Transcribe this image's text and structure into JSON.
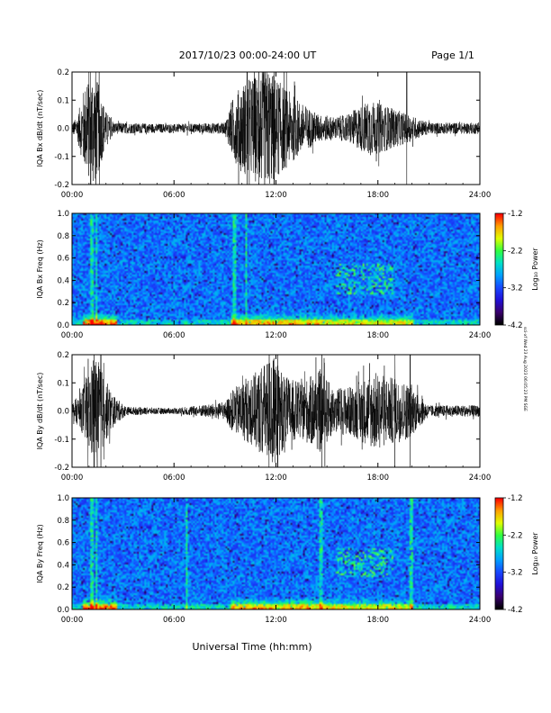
{
  "header": {
    "title": "2017/10/23  00:00-24:00 UT",
    "page": "Page 1/1"
  },
  "xaxis_title": "Universal Time (hh:mm)",
  "side_stamp": "sci-xf Wed 23 Aug 2023 06:05:23 PM SGE",
  "colors": {
    "trace": "#000000",
    "colormap": [
      "#000000",
      "#3a006e",
      "#2010d8",
      "#1848ff",
      "#00a0ff",
      "#00e0c8",
      "#30ff40",
      "#e0ff00",
      "#ffa000",
      "#ff0000"
    ]
  },
  "chart_data": [
    {
      "type": "line",
      "ylabel": "IQA Bx dB/dt (nT/sec)",
      "xlim": [
        0,
        24
      ],
      "ylim": [
        -0.2,
        0.2
      ],
      "x_ticks": [
        "00:00",
        "06:00",
        "12:00",
        "18:00",
        "24:00"
      ],
      "y_ticks": [
        "0.2",
        "0.1",
        "0.0",
        "-0.1",
        "-0.2"
      ],
      "envelope": [
        {
          "t": 0,
          "a": 0.02
        },
        {
          "t": 0.3,
          "a": 0.04
        },
        {
          "t": 0.7,
          "a": 0.14
        },
        {
          "t": 1.2,
          "a": 0.22
        },
        {
          "t": 1.6,
          "a": 0.15
        },
        {
          "t": 2.0,
          "a": 0.06
        },
        {
          "t": 2.5,
          "a": 0.02
        },
        {
          "t": 6.0,
          "a": 0.015
        },
        {
          "t": 9.0,
          "a": 0.02
        },
        {
          "t": 9.4,
          "a": 0.1
        },
        {
          "t": 10.0,
          "a": 0.16
        },
        {
          "t": 11.5,
          "a": 0.22
        },
        {
          "t": 12.3,
          "a": 0.16
        },
        {
          "t": 13.5,
          "a": 0.09
        },
        {
          "t": 14.5,
          "a": 0.05
        },
        {
          "t": 15.5,
          "a": 0.04
        },
        {
          "t": 16.2,
          "a": 0.05
        },
        {
          "t": 17.5,
          "a": 0.1
        },
        {
          "t": 18.5,
          "a": 0.08
        },
        {
          "t": 19.8,
          "a": 0.05
        },
        {
          "t": 21.0,
          "a": 0.02
        },
        {
          "t": 24.0,
          "a": 0.02
        }
      ],
      "spikes": [
        1.1,
        1.4,
        1.6,
        10.3,
        11.0,
        11.9,
        19.7
      ]
    },
    {
      "type": "heatmap",
      "ylabel": "IQA Bx Freq (Hz)",
      "xlim": [
        0,
        24
      ],
      "ylim": [
        0,
        1
      ],
      "x_ticks": [
        "00:00",
        "06:00",
        "12:00",
        "18:00",
        "24:00"
      ],
      "y_ticks": [
        "1.0",
        "0.8",
        "0.6",
        "0.4",
        "0.2",
        "0.0"
      ],
      "colorbar": {
        "label": "Log₁₀ Power",
        "ticks": [
          "-1.2",
          "-2.2",
          "-3.2",
          "-4.2"
        ],
        "range": [
          -4.2,
          -1.2
        ]
      },
      "vertical_streaks": [
        1.1,
        1.4,
        9.5,
        10.2
      ],
      "bursts": [
        {
          "t0": 15.4,
          "t1": 18.8,
          "f0": 0.28,
          "f1": 0.55
        }
      ]
    },
    {
      "type": "line",
      "ylabel": "IQA By dB/dt (nT/sec)",
      "xlim": [
        0,
        24
      ],
      "ylim": [
        -0.2,
        0.2
      ],
      "x_ticks": [
        "00:00",
        "06:00",
        "12:00",
        "18:00",
        "24:00"
      ],
      "y_ticks": [
        "0.2",
        "0.1",
        "0.0",
        "-0.1",
        "-0.2"
      ],
      "envelope": [
        {
          "t": 0,
          "a": 0.03
        },
        {
          "t": 0.5,
          "a": 0.06
        },
        {
          "t": 0.9,
          "a": 0.14
        },
        {
          "t": 1.4,
          "a": 0.2
        },
        {
          "t": 1.9,
          "a": 0.12
        },
        {
          "t": 2.5,
          "a": 0.05
        },
        {
          "t": 3.2,
          "a": 0.015
        },
        {
          "t": 6.0,
          "a": 0.01
        },
        {
          "t": 9.0,
          "a": 0.03
        },
        {
          "t": 9.5,
          "a": 0.08
        },
        {
          "t": 10.5,
          "a": 0.12
        },
        {
          "t": 11.8,
          "a": 0.2
        },
        {
          "t": 12.6,
          "a": 0.12
        },
        {
          "t": 13.5,
          "a": 0.1
        },
        {
          "t": 14.6,
          "a": 0.15
        },
        {
          "t": 15.4,
          "a": 0.08
        },
        {
          "t": 16.5,
          "a": 0.09
        },
        {
          "t": 17.8,
          "a": 0.14
        },
        {
          "t": 18.8,
          "a": 0.12
        },
        {
          "t": 19.8,
          "a": 0.1
        },
        {
          "t": 21.0,
          "a": 0.02
        },
        {
          "t": 24.0,
          "a": 0.02
        }
      ],
      "spikes": [
        1.3,
        1.7,
        11.6,
        12.1,
        14.7,
        19.0,
        19.9
      ]
    },
    {
      "type": "heatmap",
      "ylabel": "IQA By Freq (Hz)",
      "xlim": [
        0,
        24
      ],
      "ylim": [
        0,
        1
      ],
      "x_ticks": [
        "00:00",
        "06:00",
        "12:00",
        "18:00",
        "24:00"
      ],
      "y_ticks": [
        "1.0",
        "0.8",
        "0.6",
        "0.4",
        "0.2",
        "0.0"
      ],
      "colorbar": {
        "label": "Log₁₀ Power",
        "ticks": [
          "-1.2",
          "-2.2",
          "-3.2",
          "-4.2"
        ],
        "range": [
          -4.2,
          -1.2
        ]
      },
      "vertical_streaks": [
        1.1,
        1.4,
        6.7,
        14.6,
        19.9
      ],
      "bursts": [
        {
          "t0": 15.4,
          "t1": 18.8,
          "f0": 0.3,
          "f1": 0.55
        }
      ]
    }
  ]
}
